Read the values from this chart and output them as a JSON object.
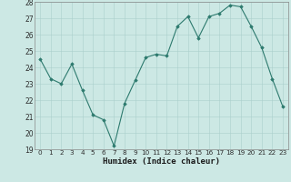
{
  "x": [
    0,
    1,
    2,
    3,
    4,
    5,
    6,
    7,
    8,
    9,
    10,
    11,
    12,
    13,
    14,
    15,
    16,
    17,
    18,
    19,
    20,
    21,
    22,
    23
  ],
  "y": [
    24.5,
    23.3,
    23.0,
    24.2,
    22.6,
    21.1,
    20.8,
    19.2,
    21.8,
    23.2,
    24.6,
    24.8,
    24.7,
    26.5,
    27.1,
    25.8,
    27.1,
    27.3,
    27.8,
    27.7,
    26.5,
    25.2,
    23.3,
    21.6
  ],
  "title": "",
  "xlabel": "Humidex (Indice chaleur)",
  "ylabel": "",
  "ylim": [
    19,
    28
  ],
  "xlim": [
    -0.5,
    23.5
  ],
  "yticks": [
    19,
    20,
    21,
    22,
    23,
    24,
    25,
    26,
    27,
    28
  ],
  "xticks": [
    0,
    1,
    2,
    3,
    4,
    5,
    6,
    7,
    8,
    9,
    10,
    11,
    12,
    13,
    14,
    15,
    16,
    17,
    18,
    19,
    20,
    21,
    22,
    23
  ],
  "line_color": "#2d7a6e",
  "marker_color": "#2d7a6e",
  "axes_bg": "#cce8e4",
  "fig_bg": "#cce8e4",
  "grid_color": "#aacfcc"
}
